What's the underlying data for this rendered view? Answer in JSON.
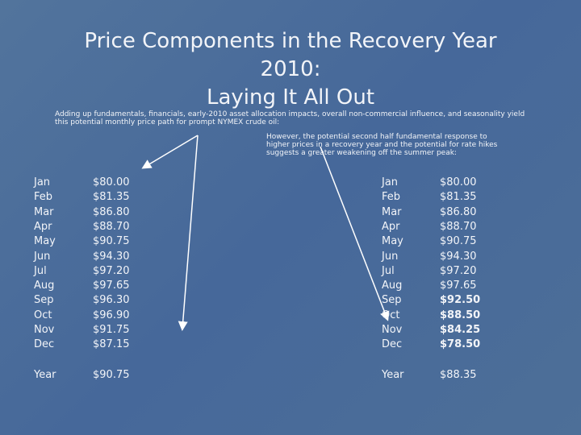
{
  "title": {
    "lines": [
      "Price Components in the Recovery Year",
      "2010:",
      "Laying It All Out"
    ]
  },
  "intro": "Adding up fundamentals, financials, early-2010 asset allocation impacts, overall non-commercial influence, and seasonality yield this potential monthly price path for prompt NYMEX crude oil:",
  "note": "However, the potential second half fundamental response to higher prices in a recovery year and the potential for rate hikes suggests a greater weakening off the summer peak:",
  "tables": [
    {
      "rows": [
        {
          "month": "Jan",
          "price": "$80.00"
        },
        {
          "month": "Feb",
          "price": "$81.35"
        },
        {
          "month": "Mar",
          "price": "$86.80"
        },
        {
          "month": "Apr",
          "price": "$88.70"
        },
        {
          "month": "May",
          "price": "$90.75"
        },
        {
          "month": "Jun",
          "price": "$94.30"
        },
        {
          "month": "Jul",
          "price": "$97.20"
        },
        {
          "month": "Aug",
          "price": "$97.65"
        },
        {
          "month": "Sep",
          "price": "$96.30"
        },
        {
          "month": "Oct",
          "price": "$96.90"
        },
        {
          "month": "Nov",
          "price": "$91.75"
        },
        {
          "month": "Dec",
          "price": "$87.15"
        }
      ],
      "total": {
        "month": "Year",
        "price": "$90.75"
      }
    },
    {
      "rows": [
        {
          "month": "Jan",
          "price": "$80.00"
        },
        {
          "month": "Feb",
          "price": "$81.35"
        },
        {
          "month": "Mar",
          "price": "$86.80"
        },
        {
          "month": "Apr",
          "price": "$88.70"
        },
        {
          "month": "May",
          "price": "$90.75"
        },
        {
          "month": "Jun",
          "price": "$94.30"
        },
        {
          "month": "Jul",
          "price": "$97.20"
        },
        {
          "month": "Aug",
          "price": "$97.65"
        },
        {
          "month": "Sep",
          "price": "$92.50",
          "bold": true
        },
        {
          "month": "Oct",
          "price": "$88.50",
          "bold": true
        },
        {
          "month": "Nov",
          "price": "$84.25",
          "bold": true
        },
        {
          "month": "Dec",
          "price": "$78.50",
          "bold": true
        }
      ],
      "total": {
        "month": "Year",
        "price": "$88.35"
      }
    }
  ]
}
